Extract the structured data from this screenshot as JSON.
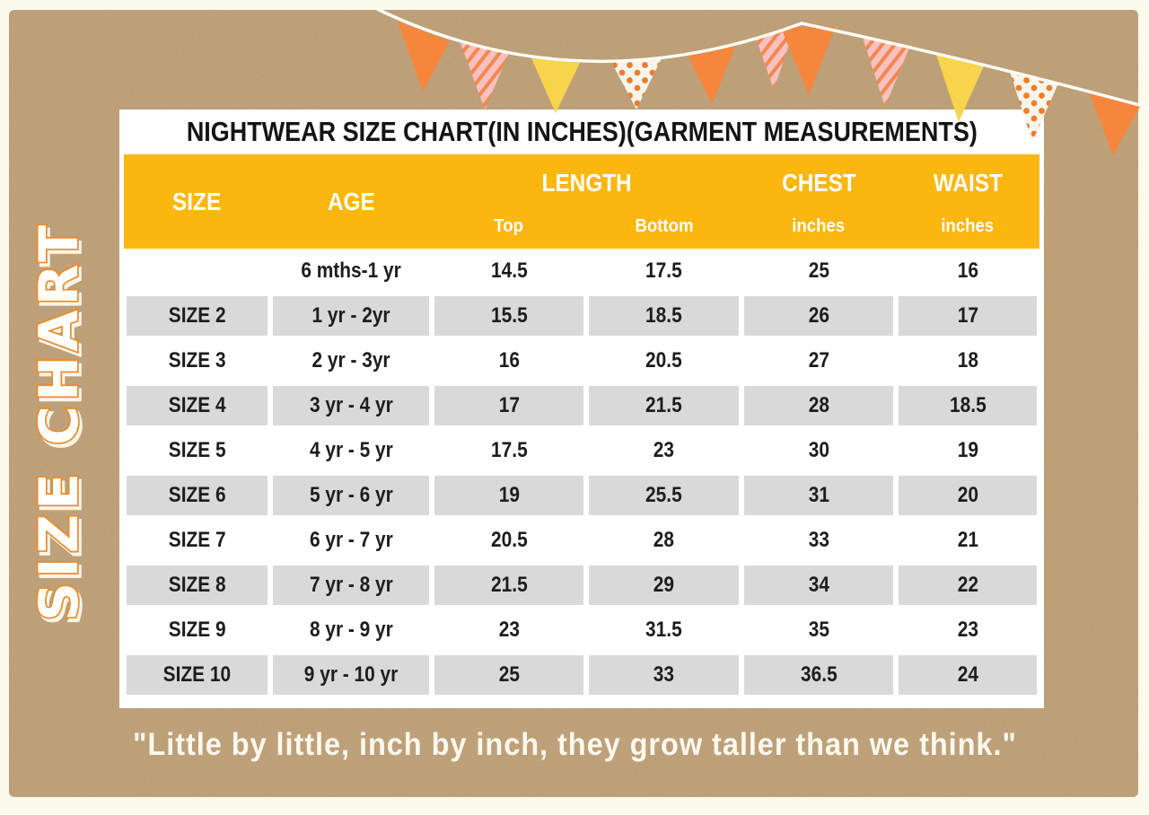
{
  "banner": {
    "side_text": "SIZE CHART"
  },
  "card": {
    "title": "NIGHTWEAR SIZE CHART(IN INCHES)(GARMENT MEASUREMENTS)",
    "header": {
      "size": "SIZE",
      "age": "AGE",
      "length": "LENGTH",
      "length_sub_top": "Top",
      "length_sub_bottom": "Bottom",
      "chest": "CHEST",
      "chest_sub": "inches",
      "waist": "WAIST",
      "waist_sub": "inches"
    }
  },
  "quote": "\"Little by little, inch by inch, they grow taller than we think.\"",
  "decor": {
    "bunting_flag_styles": [
      "orange",
      "stripes",
      "yellow",
      "dots",
      "orange",
      "stripes",
      "orange",
      "stripes",
      "yellow",
      "dots",
      "orange"
    ]
  },
  "colors": {
    "kraft_background": "#BE9C6F",
    "frame_cream": "#FCFAEC",
    "header_yellow": "#FBB60F",
    "row_gray": "#D9D9D9",
    "accent_orange": "#F6863C",
    "outline_orange": "#EE8A25",
    "flag_yellow": "#F8D44C",
    "flag_pink": "#FAC0C0",
    "flag_dot_cream": "#F7F4EB",
    "table_text": "#1D1D1D",
    "header_text": "#FFFFFF",
    "quote_text": "#FBF8EE"
  },
  "chart_data": {
    "type": "table",
    "title": "NIGHTWEAR SIZE CHART(IN INCHES)(GARMENT MEASUREMENTS)",
    "columns": [
      "SIZE",
      "AGE",
      "LENGTH Top",
      "LENGTH Bottom",
      "CHEST inches",
      "WAIST inches"
    ],
    "rows": [
      [
        "",
        "6 mths-1 yr",
        "14.5",
        "17.5",
        "25",
        "16"
      ],
      [
        "SIZE 2",
        "1 yr - 2yr",
        "15.5",
        "18.5",
        "26",
        "17"
      ],
      [
        "SIZE 3",
        "2 yr - 3yr",
        "16",
        "20.5",
        "27",
        "18"
      ],
      [
        "SIZE 4",
        "3 yr - 4 yr",
        "17",
        "21.5",
        "28",
        "18.5"
      ],
      [
        "SIZE 5",
        "4 yr - 5 yr",
        "17.5",
        "23",
        "30",
        "19"
      ],
      [
        "SIZE 6",
        "5 yr - 6 yr",
        "19",
        "25.5",
        "31",
        "20"
      ],
      [
        "SIZE 7",
        "6 yr - 7 yr",
        "20.5",
        "28",
        "33",
        "21"
      ],
      [
        "SIZE 8",
        "7 yr - 8 yr",
        "21.5",
        "29",
        "34",
        "22"
      ],
      [
        "SIZE 9",
        "8 yr - 9 yr",
        "23",
        "31.5",
        "35",
        "23"
      ],
      [
        "SIZE 10",
        "9 yr - 10 yr",
        "25",
        "33",
        "36.5",
        "24"
      ]
    ]
  }
}
